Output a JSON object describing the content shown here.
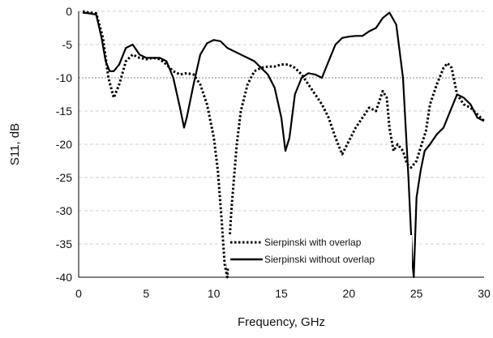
{
  "chart_data": {
    "type": "line",
    "title": "",
    "xlabel": "Frequency, GHz",
    "ylabel": "S11, dB",
    "xlim": [
      0,
      30
    ],
    "ylim": [
      -40,
      0
    ],
    "x_ticks": [
      "0",
      "5",
      "10",
      "15",
      "20",
      "25",
      "30"
    ],
    "y_ticks": [
      "0",
      "-5",
      "-10",
      "-15",
      "-20",
      "-25",
      "-30",
      "-35",
      "-40"
    ],
    "grid": "horizontal dashed",
    "reference_line": -10,
    "legend_position": "bottom-center",
    "series": [
      {
        "name": "Sierpinski with overlap",
        "style": "dotted",
        "color": "#000000",
        "x": [
          0.3,
          0.8,
          1.3,
          1.8,
          2.2,
          2.6,
          3.0,
          3.5,
          4.0,
          4.5,
          5.0,
          5.5,
          6.0,
          6.5,
          7.0,
          7.5,
          8.0,
          8.5,
          9.0,
          9.5,
          10.0,
          10.3,
          10.6,
          10.8,
          11.0,
          11.3,
          11.7,
          12.0,
          12.5,
          13.0,
          13.5,
          14.0,
          14.5,
          15.0,
          15.5,
          16.0,
          16.5,
          17.0,
          17.5,
          18.0,
          18.5,
          19.0,
          19.5,
          20.0,
          20.5,
          21.0,
          21.5,
          22.0,
          22.5,
          22.8,
          23.0,
          23.3,
          23.6,
          24.0,
          24.3,
          24.6,
          25.0,
          25.3,
          25.7,
          26.0,
          26.5,
          27.0,
          27.3,
          27.6,
          28.0,
          28.5,
          29.0,
          29.5,
          30.0
        ],
        "y": [
          0,
          -0.2,
          -0.3,
          -4.0,
          -10.0,
          -13.0,
          -11.0,
          -7.5,
          -6.5,
          -7.0,
          -7.2,
          -7.0,
          -7.2,
          -8.0,
          -9.0,
          -9.5,
          -9.3,
          -9.5,
          -11.0,
          -14.0,
          -19.0,
          -24.0,
          -32.0,
          -38.0,
          -40.0,
          -30.0,
          -20.0,
          -15.0,
          -11.0,
          -9.0,
          -8.5,
          -8.3,
          -8.3,
          -8.0,
          -8.0,
          -8.5,
          -9.5,
          -11.0,
          -12.5,
          -14.0,
          -16.0,
          -19.0,
          -21.5,
          -19.5,
          -17.5,
          -16.0,
          -14.5,
          -15.0,
          -12.0,
          -13.0,
          -17.5,
          -21.0,
          -20.0,
          -21.0,
          -23.0,
          -23.5,
          -22.5,
          -20.5,
          -18.0,
          -14.0,
          -11.0,
          -8.5,
          -7.8,
          -8.5,
          -12.5,
          -14.0,
          -14.5,
          -15.5,
          -16.5
        ]
      },
      {
        "name": "Sierpinski without overlap",
        "style": "solid",
        "color": "#000000",
        "x": [
          0.3,
          0.8,
          1.3,
          1.7,
          2.0,
          2.3,
          2.6,
          3.0,
          3.5,
          4.0,
          4.5,
          5.0,
          5.5,
          6.0,
          6.5,
          7.0,
          7.5,
          7.8,
          8.0,
          8.5,
          9.0,
          9.5,
          10.0,
          10.5,
          11.0,
          11.5,
          12.0,
          12.5,
          13.0,
          13.5,
          14.0,
          14.5,
          15.0,
          15.3,
          15.6,
          16.0,
          16.5,
          17.0,
          17.5,
          18.0,
          18.5,
          19.0,
          19.5,
          20.0,
          20.5,
          21.0,
          21.5,
          22.0,
          22.5,
          23.0,
          23.5,
          24.0,
          24.4,
          24.7,
          24.8,
          25.0,
          25.3,
          25.6,
          26.0,
          26.5,
          27.0,
          27.5,
          28.0,
          28.5,
          29.0,
          29.5,
          30.0
        ],
        "y": [
          -0.2,
          -0.3,
          -0.5,
          -4.0,
          -7.5,
          -9.0,
          -9.0,
          -8.0,
          -5.5,
          -5.0,
          -6.5,
          -7.0,
          -7.0,
          -7.0,
          -7.5,
          -10.0,
          -14.5,
          -17.5,
          -16.0,
          -11.0,
          -6.5,
          -4.8,
          -4.3,
          -4.5,
          -5.5,
          -6.0,
          -6.5,
          -7.0,
          -7.5,
          -8.5,
          -9.5,
          -11.5,
          -16.0,
          -21.0,
          -19.0,
          -12.5,
          -10.0,
          -9.3,
          -9.5,
          -10.0,
          -7.5,
          -5.0,
          -4.0,
          -3.8,
          -3.7,
          -3.7,
          -3.0,
          -2.5,
          -1.0,
          -0.2,
          -2.0,
          -10.0,
          -25.0,
          -38.0,
          -40.0,
          -28.0,
          -24.0,
          -21.0,
          -20.0,
          -18.5,
          -17.5,
          -15.0,
          -12.5,
          -13.0,
          -14.0,
          -16.0,
          -16.5
        ]
      }
    ]
  }
}
